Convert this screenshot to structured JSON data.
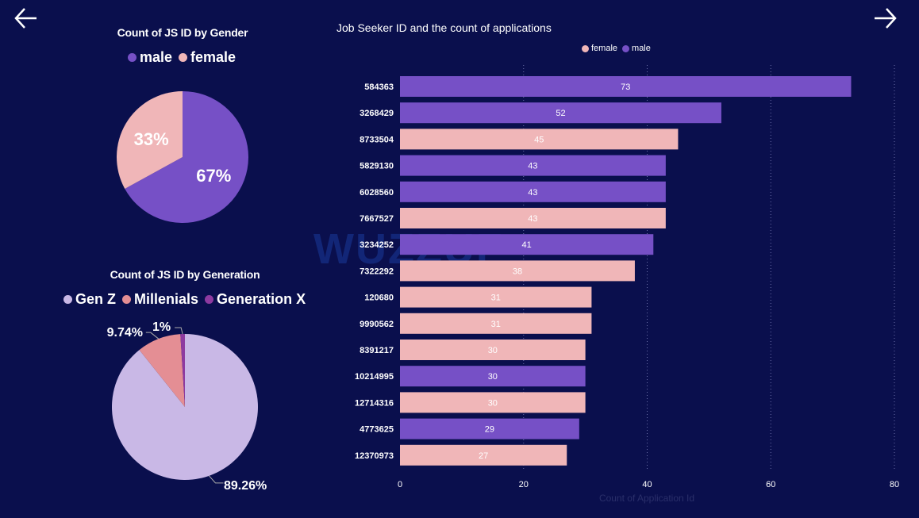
{
  "navigation": {
    "back_icon": "left-arrow-icon",
    "next_icon": "right-arrow-icon"
  },
  "colors": {
    "background": "#0a0f4d",
    "male": "#7650c6",
    "female": "#f0b6b8",
    "gen_z": "#c9b8e6",
    "millenials": "#e48e94",
    "generation_x": "#8e3aa0"
  },
  "watermark": "WUZZUF",
  "gender_chart": {
    "title": "Count of JS ID by Gender",
    "legend": [
      {
        "label": "male",
        "color": "#7650c6"
      },
      {
        "label": "female",
        "color": "#f0b6b8"
      }
    ],
    "chart_data": {
      "type": "pie",
      "title": "Count of JS ID by Gender",
      "slices": [
        {
          "label": "male",
          "value": 67,
          "display": "67%"
        },
        {
          "label": "female",
          "value": 33,
          "display": "33%"
        }
      ]
    }
  },
  "generation_chart": {
    "title": "Count of JS ID by Generation",
    "legend": [
      {
        "label": "Gen Z",
        "color": "#c9b8e6"
      },
      {
        "label": "Millenials",
        "color": "#e48e94"
      },
      {
        "label": "Generation X",
        "color": "#8e3aa0"
      }
    ],
    "chart_data": {
      "type": "pie",
      "title": "Count of JS ID by Generation",
      "slices": [
        {
          "label": "Gen Z",
          "value": 89.26,
          "display": "89.26%"
        },
        {
          "label": "Millenials",
          "value": 9.74,
          "display": "9.74%"
        },
        {
          "label": "Generation X",
          "value": 1,
          "display": "1%"
        }
      ]
    }
  },
  "applications_chart": {
    "title": "Job Seeker ID and the count of applications",
    "legend": [
      {
        "label": "female",
        "color": "#f0b6b8"
      },
      {
        "label": "male",
        "color": "#7650c6"
      }
    ],
    "chart_data": {
      "type": "bar",
      "orientation": "horizontal",
      "title": "Job Seeker ID and the count of applications",
      "xlabel": "Count of Application Id",
      "ylabel": "",
      "xlim": [
        0,
        80
      ],
      "xticks": [
        "0",
        "20",
        "40",
        "60",
        "80"
      ],
      "grid": true,
      "categories": [
        "584363",
        "3268429",
        "8733504",
        "5829130",
        "6028560",
        "7667527",
        "3234252",
        "7322292",
        "120680",
        "9990562",
        "8391217",
        "10214995",
        "12714316",
        "4773625",
        "12370973"
      ],
      "values": [
        73,
        52,
        45,
        43,
        43,
        43,
        41,
        38,
        31,
        31,
        30,
        30,
        30,
        29,
        27
      ],
      "gender": [
        "male",
        "male",
        "female",
        "male",
        "male",
        "female",
        "male",
        "female",
        "female",
        "female",
        "female",
        "male",
        "female",
        "male",
        "female"
      ]
    }
  }
}
